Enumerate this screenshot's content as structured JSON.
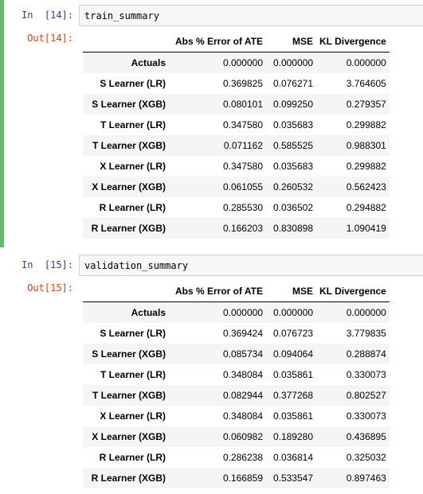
{
  "cells": [
    {
      "in_prompt": "In  [14]:",
      "out_prompt": "Out[14]:",
      "code": "train_summary",
      "table": {
        "columns": [
          "",
          "Abs % Error of ATE",
          "MSE",
          "KL Divergence"
        ],
        "rows": [
          [
            "Actuals",
            "0.000000",
            "0.000000",
            "0.000000"
          ],
          [
            "S Learner (LR)",
            "0.369825",
            "0.076271",
            "3.764605"
          ],
          [
            "S Learner (XGB)",
            "0.080101",
            "0.099250",
            "0.279357"
          ],
          [
            "T Learner (LR)",
            "0.347580",
            "0.035683",
            "0.299882"
          ],
          [
            "T Learner (XGB)",
            "0.071162",
            "0.585525",
            "0.988301"
          ],
          [
            "X Learner (LR)",
            "0.347580",
            "0.035683",
            "0.299882"
          ],
          [
            "X Learner (XGB)",
            "0.061055",
            "0.260532",
            "0.562423"
          ],
          [
            "R Learner (LR)",
            "0.285530",
            "0.036502",
            "0.294882"
          ],
          [
            "R Learner (XGB)",
            "0.166203",
            "0.830898",
            "1.090419"
          ]
        ]
      }
    },
    {
      "in_prompt": "In  [15]:",
      "out_prompt": "Out[15]:",
      "code": "validation_summary",
      "table": {
        "columns": [
          "",
          "Abs % Error of ATE",
          "MSE",
          "KL Divergence"
        ],
        "rows": [
          [
            "Actuals",
            "0.000000",
            "0.000000",
            "0.000000"
          ],
          [
            "S Learner (LR)",
            "0.369424",
            "0.076723",
            "3.779835"
          ],
          [
            "S Learner (XGB)",
            "0.085734",
            "0.094064",
            "0.288874"
          ],
          [
            "T Learner (LR)",
            "0.348084",
            "0.035861",
            "0.330073"
          ],
          [
            "T Learner (XGB)",
            "0.082944",
            "0.377268",
            "0.802527"
          ],
          [
            "X Learner (LR)",
            "0.348084",
            "0.035861",
            "0.330073"
          ],
          [
            "X Learner (XGB)",
            "0.060982",
            "0.189280",
            "0.436895"
          ],
          [
            "R Learner (LR)",
            "0.286238",
            "0.036814",
            "0.325032"
          ],
          [
            "R Learner (XGB)",
            "0.166859",
            "0.533547",
            "0.897463"
          ]
        ]
      }
    }
  ],
  "colors": {
    "selected_cell_bar": "#66bb6a",
    "in_prompt": "#303f9f",
    "out_prompt": "#d84315",
    "input_background": "#f7f7f7",
    "row_stripe": "#f5f5f5"
  }
}
